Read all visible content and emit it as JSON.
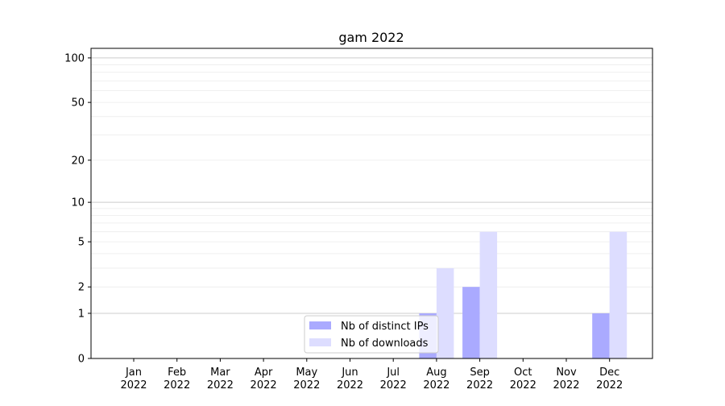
{
  "chart_data": {
    "type": "bar",
    "title": "gam 2022",
    "xlabel": "",
    "ylabel": "",
    "yscale": "log(1+y)",
    "ylim": [
      0,
      116
    ],
    "yticks": [
      0,
      1,
      2,
      5,
      10,
      20,
      50,
      100
    ],
    "ytick_labels": [
      "0",
      "1",
      "2",
      "5",
      "10",
      "20",
      "50",
      "100"
    ],
    "grid": true,
    "legend_position": "lower-center",
    "categories": [
      [
        "Jan",
        "2022"
      ],
      [
        "Feb",
        "2022"
      ],
      [
        "Mar",
        "2022"
      ],
      [
        "Apr",
        "2022"
      ],
      [
        "May",
        "2022"
      ],
      [
        "Jun",
        "2022"
      ],
      [
        "Jul",
        "2022"
      ],
      [
        "Aug",
        "2022"
      ],
      [
        "Sep",
        "2022"
      ],
      [
        "Oct",
        "2022"
      ],
      [
        "Nov",
        "2022"
      ],
      [
        "Dec",
        "2022"
      ]
    ],
    "series": [
      {
        "name": "Nb of distinct IPs",
        "color": "#aaaaff",
        "values": [
          0,
          0,
          0,
          0,
          0,
          0,
          0,
          1,
          2,
          0,
          0,
          1
        ]
      },
      {
        "name": "Nb of downloads",
        "color": "#ddddff",
        "values": [
          0,
          0,
          0,
          0,
          0,
          0,
          0,
          3,
          6,
          0,
          0,
          6
        ]
      }
    ]
  }
}
